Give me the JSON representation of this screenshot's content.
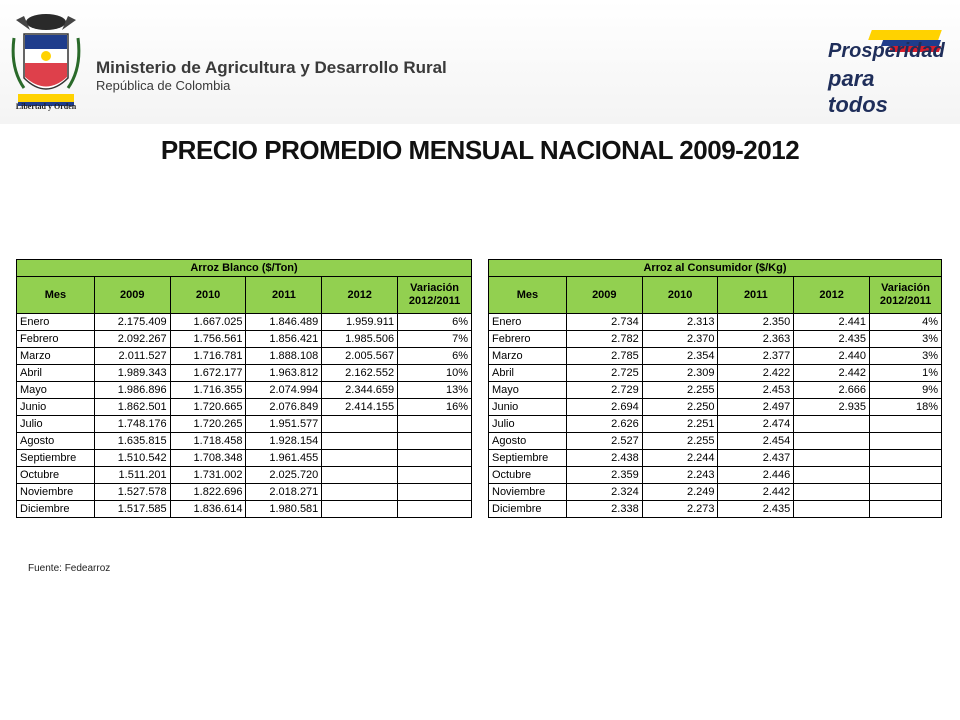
{
  "header": {
    "ministry_title": "Ministerio de Agricultura y Desarrollo Rural",
    "ministry_subtitle": "República de Colombia",
    "motto": "Libertad y Orden",
    "prosperidad_line1": "Prosperidad",
    "prosperidad_line2": "para todos"
  },
  "page_title": "PRECIO PROMEDIO MENSUAL NACIONAL  2009-2012",
  "table_left": {
    "title": "Arroz Blanco ($/Ton)",
    "columns": [
      "Mes",
      "2009",
      "2010",
      "2011",
      "2012",
      "Variación 2012/2011"
    ],
    "rows": [
      [
        "Enero",
        "2.175.409",
        "1.667.025",
        "1.846.489",
        "1.959.911",
        "6%"
      ],
      [
        "Febrero",
        "2.092.267",
        "1.756.561",
        "1.856.421",
        "1.985.506",
        "7%"
      ],
      [
        "Marzo",
        "2.011.527",
        "1.716.781",
        "1.888.108",
        "2.005.567",
        "6%"
      ],
      [
        "Abril",
        "1.989.343",
        "1.672.177",
        "1.963.812",
        "2.162.552",
        "10%"
      ],
      [
        "Mayo",
        "1.986.896",
        "1.716.355",
        "2.074.994",
        "2.344.659",
        "13%"
      ],
      [
        "Junio",
        "1.862.501",
        "1.720.665",
        "2.076.849",
        "2.414.155",
        "16%"
      ],
      [
        "Julio",
        "1.748.176",
        "1.720.265",
        "1.951.577",
        "",
        ""
      ],
      [
        "Agosto",
        "1.635.815",
        "1.718.458",
        "1.928.154",
        "",
        ""
      ],
      [
        "Septiembre",
        "1.510.542",
        "1.708.348",
        "1.961.455",
        "",
        ""
      ],
      [
        "Octubre",
        "1.511.201",
        "1.731.002",
        "2.025.720",
        "",
        ""
      ],
      [
        "Noviembre",
        "1.527.578",
        "1.822.696",
        "2.018.271",
        "",
        ""
      ],
      [
        "Diciembre",
        "1.517.585",
        "1.836.614",
        "1.980.581",
        "",
        ""
      ]
    ]
  },
  "table_right": {
    "title": "Arroz al Consumidor ($/Kg)",
    "columns": [
      "Mes",
      "2009",
      "2010",
      "2011",
      "2012",
      "Variación 2012/2011"
    ],
    "rows": [
      [
        "Enero",
        "2.734",
        "2.313",
        "2.350",
        "2.441",
        "4%"
      ],
      [
        "Febrero",
        "2.782",
        "2.370",
        "2.363",
        "2.435",
        "3%"
      ],
      [
        "Marzo",
        "2.785",
        "2.354",
        "2.377",
        "2.440",
        "3%"
      ],
      [
        "Abril",
        "2.725",
        "2.309",
        "2.422",
        "2.442",
        "1%"
      ],
      [
        "Mayo",
        "2.729",
        "2.255",
        "2.453",
        "2.666",
        "9%"
      ],
      [
        "Junio",
        "2.694",
        "2.250",
        "2.497",
        "2.935",
        "18%"
      ],
      [
        "Julio",
        "2.626",
        "2.251",
        "2.474",
        "",
        ""
      ],
      [
        "Agosto",
        "2.527",
        "2.255",
        "2.454",
        "",
        ""
      ],
      [
        "Septiembre",
        "2.438",
        "2.244",
        "2.437",
        "",
        ""
      ],
      [
        "Octubre",
        "2.359",
        "2.243",
        "2.446",
        "",
        ""
      ],
      [
        "Noviembre",
        "2.324",
        "2.249",
        "2.442",
        "",
        ""
      ],
      [
        "Diciembre",
        "2.338",
        "2.273",
        "2.435",
        "",
        ""
      ]
    ]
  },
  "source_note": "Fuente: Fedearroz",
  "colors": {
    "header_fill": "#92d050",
    "flag_yellow": "#ffd200",
    "flag_blue": "#1f3d8c",
    "flag_red": "#d81e2c"
  }
}
